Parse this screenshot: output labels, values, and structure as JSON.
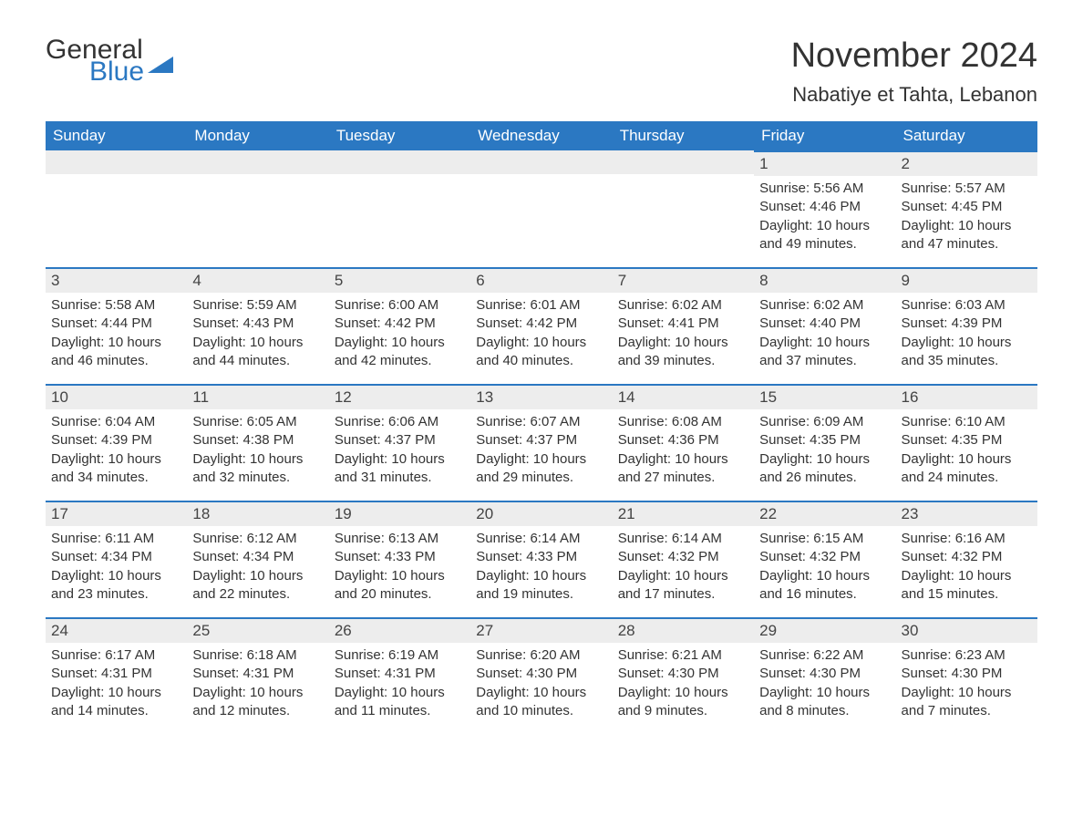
{
  "brand": {
    "line1": "General",
    "line2": "Blue",
    "accent_color": "#2b78c2"
  },
  "header": {
    "title": "November 2024",
    "location": "Nabatiye et Tahta, Lebanon"
  },
  "colors": {
    "header_bg": "#2b78c2",
    "header_text": "#ffffff",
    "daynum_bg": "#ededed",
    "daynum_border": "#2b78c2",
    "body_text": "#333333",
    "page_bg": "#ffffff"
  },
  "day_labels": [
    "Sunday",
    "Monday",
    "Tuesday",
    "Wednesday",
    "Thursday",
    "Friday",
    "Saturday"
  ],
  "weeks": [
    [
      null,
      null,
      null,
      null,
      null,
      {
        "n": "1",
        "sunrise": "5:56 AM",
        "sunset": "4:46 PM",
        "daylight": "10 hours and 49 minutes."
      },
      {
        "n": "2",
        "sunrise": "5:57 AM",
        "sunset": "4:45 PM",
        "daylight": "10 hours and 47 minutes."
      }
    ],
    [
      {
        "n": "3",
        "sunrise": "5:58 AM",
        "sunset": "4:44 PM",
        "daylight": "10 hours and 46 minutes."
      },
      {
        "n": "4",
        "sunrise": "5:59 AM",
        "sunset": "4:43 PM",
        "daylight": "10 hours and 44 minutes."
      },
      {
        "n": "5",
        "sunrise": "6:00 AM",
        "sunset": "4:42 PM",
        "daylight": "10 hours and 42 minutes."
      },
      {
        "n": "6",
        "sunrise": "6:01 AM",
        "sunset": "4:42 PM",
        "daylight": "10 hours and 40 minutes."
      },
      {
        "n": "7",
        "sunrise": "6:02 AM",
        "sunset": "4:41 PM",
        "daylight": "10 hours and 39 minutes."
      },
      {
        "n": "8",
        "sunrise": "6:02 AM",
        "sunset": "4:40 PM",
        "daylight": "10 hours and 37 minutes."
      },
      {
        "n": "9",
        "sunrise": "6:03 AM",
        "sunset": "4:39 PM",
        "daylight": "10 hours and 35 minutes."
      }
    ],
    [
      {
        "n": "10",
        "sunrise": "6:04 AM",
        "sunset": "4:39 PM",
        "daylight": "10 hours and 34 minutes."
      },
      {
        "n": "11",
        "sunrise": "6:05 AM",
        "sunset": "4:38 PM",
        "daylight": "10 hours and 32 minutes."
      },
      {
        "n": "12",
        "sunrise": "6:06 AM",
        "sunset": "4:37 PM",
        "daylight": "10 hours and 31 minutes."
      },
      {
        "n": "13",
        "sunrise": "6:07 AM",
        "sunset": "4:37 PM",
        "daylight": "10 hours and 29 minutes."
      },
      {
        "n": "14",
        "sunrise": "6:08 AM",
        "sunset": "4:36 PM",
        "daylight": "10 hours and 27 minutes."
      },
      {
        "n": "15",
        "sunrise": "6:09 AM",
        "sunset": "4:35 PM",
        "daylight": "10 hours and 26 minutes."
      },
      {
        "n": "16",
        "sunrise": "6:10 AM",
        "sunset": "4:35 PM",
        "daylight": "10 hours and 24 minutes."
      }
    ],
    [
      {
        "n": "17",
        "sunrise": "6:11 AM",
        "sunset": "4:34 PM",
        "daylight": "10 hours and 23 minutes."
      },
      {
        "n": "18",
        "sunrise": "6:12 AM",
        "sunset": "4:34 PM",
        "daylight": "10 hours and 22 minutes."
      },
      {
        "n": "19",
        "sunrise": "6:13 AM",
        "sunset": "4:33 PM",
        "daylight": "10 hours and 20 minutes."
      },
      {
        "n": "20",
        "sunrise": "6:14 AM",
        "sunset": "4:33 PM",
        "daylight": "10 hours and 19 minutes."
      },
      {
        "n": "21",
        "sunrise": "6:14 AM",
        "sunset": "4:32 PM",
        "daylight": "10 hours and 17 minutes."
      },
      {
        "n": "22",
        "sunrise": "6:15 AM",
        "sunset": "4:32 PM",
        "daylight": "10 hours and 16 minutes."
      },
      {
        "n": "23",
        "sunrise": "6:16 AM",
        "sunset": "4:32 PM",
        "daylight": "10 hours and 15 minutes."
      }
    ],
    [
      {
        "n": "24",
        "sunrise": "6:17 AM",
        "sunset": "4:31 PM",
        "daylight": "10 hours and 14 minutes."
      },
      {
        "n": "25",
        "sunrise": "6:18 AM",
        "sunset": "4:31 PM",
        "daylight": "10 hours and 12 minutes."
      },
      {
        "n": "26",
        "sunrise": "6:19 AM",
        "sunset": "4:31 PM",
        "daylight": "10 hours and 11 minutes."
      },
      {
        "n": "27",
        "sunrise": "6:20 AM",
        "sunset": "4:30 PM",
        "daylight": "10 hours and 10 minutes."
      },
      {
        "n": "28",
        "sunrise": "6:21 AM",
        "sunset": "4:30 PM",
        "daylight": "10 hours and 9 minutes."
      },
      {
        "n": "29",
        "sunrise": "6:22 AM",
        "sunset": "4:30 PM",
        "daylight": "10 hours and 8 minutes."
      },
      {
        "n": "30",
        "sunrise": "6:23 AM",
        "sunset": "4:30 PM",
        "daylight": "10 hours and 7 minutes."
      }
    ]
  ],
  "labels": {
    "sunrise": "Sunrise: ",
    "sunset": "Sunset: ",
    "daylight": "Daylight: "
  }
}
